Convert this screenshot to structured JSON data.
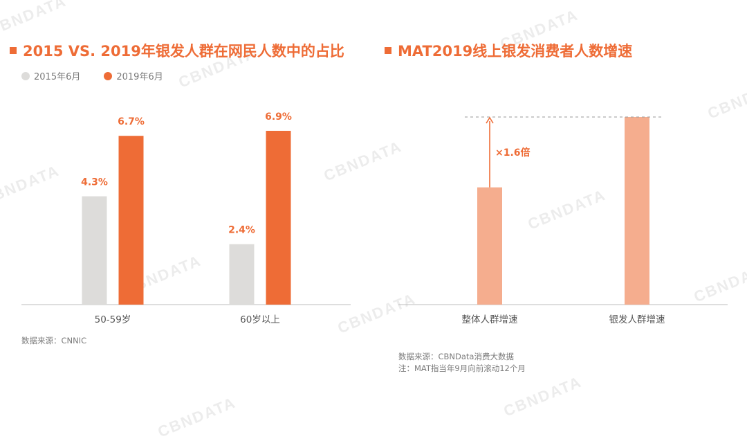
{
  "watermark_text": "CBNDATA",
  "left_panel": {
    "title": "2015 VS. 2019年银发人群在网民人数中的占比",
    "source": "数据来源：CNNIC"
  },
  "right_panel": {
    "title": "MAT2019线上银发消费者人数增速",
    "source_line1": "数据来源：CBNData消费大数据",
    "source_line2": "注：MAT指当年9月向前滚动12个月"
  },
  "colors": {
    "accent": "#ee6c36",
    "gray_bar": "#dddcda",
    "salmon_bar": "#f5ad8e",
    "axis": "#bdbdbd"
  },
  "chart_data": [
    {
      "type": "bar",
      "title": "2015 VS. 2019年银发人群在网民人数中的占比",
      "categories": [
        "50-59岁",
        "60岁以上"
      ],
      "series": [
        {
          "name": "2015年6月",
          "values": [
            4.3,
            2.4
          ],
          "labels": [
            "4.3%",
            "2.4%"
          ],
          "color": "#dddcda"
        },
        {
          "name": "2019年6月",
          "values": [
            6.7,
            6.9
          ],
          "labels": [
            "6.7%",
            "6.9%"
          ],
          "color": "#ee6c36"
        }
      ],
      "ylim": [
        0,
        8.3
      ],
      "grid": false,
      "legend": "top-left"
    },
    {
      "type": "bar",
      "title": "MAT2019线上银发消费者人数增速",
      "categories": [
        "整体人群增速",
        "银发人群增速"
      ],
      "values": [
        1,
        1.6
      ],
      "color": "#f5ad8e",
      "ylim": [
        0,
        1.6
      ],
      "annotation": {
        "text": "×1.6倍",
        "from_category": 0,
        "to_category": 1
      }
    }
  ]
}
